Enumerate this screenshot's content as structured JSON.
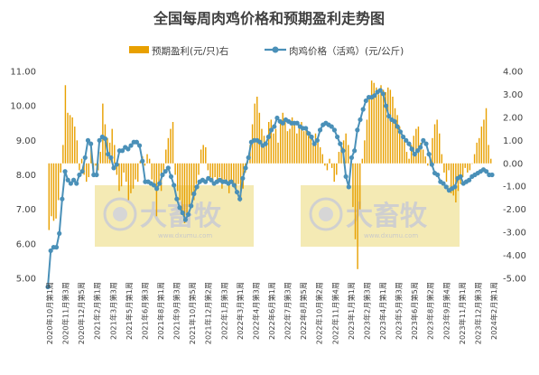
{
  "chart_data": {
    "type": "bar+line",
    "title": "全国每周肉鸡价格和预期盈利走势图",
    "x_tick_labels": [
      "2020年10月第1周",
      "2020年11月第3周",
      "2020年12月第5周",
      "2021年2月第1周",
      "2021年3月第3周",
      "2021年5月第1周",
      "2021年6月第3周",
      "2021年8月第1周",
      "2021年9月第3周",
      "2021年10月第5周",
      "2021年12月第2周",
      "2022年1月第3周",
      "2022年3月第1周",
      "2022年4月第3周",
      "2022年6月第1周",
      "2022年7月第3周",
      "2022年8月第5周",
      "2022年10月第2周",
      "2022年11月第4周",
      "2023年1月第1周",
      "2023年2月第3周",
      "2023年4月第1周",
      "2023年5月第3周",
      "2023年6月第5周",
      "2023年8月第2周",
      "2023年9月第4周",
      "2023年11月第1周",
      "2023年12月第3周",
      "2024年2月第1周"
    ],
    "left_axis": {
      "ylim": [
        5.0,
        11.0
      ],
      "ticks": [
        "5.00",
        "6.00",
        "7.00",
        "8.00",
        "9.00",
        "10.00",
        "11.00"
      ]
    },
    "right_axis": {
      "ylim": [
        -5.0,
        4.0
      ],
      "ticks": [
        "-5.00",
        "-4.00",
        "-3.00",
        "-2.00",
        "-1.00",
        "0.00",
        "1.00",
        "2.00",
        "3.00",
        "4.00"
      ]
    },
    "legend": {
      "position": "top-center"
    },
    "series": [
      {
        "name": "预期盈利(元/只)右",
        "type": "bar",
        "axis": "right",
        "color": "#E8A000",
        "values": [
          -2.9,
          -2.3,
          -2.5,
          -2.4,
          -1.6,
          -0.4,
          0.8,
          3.4,
          2.2,
          2.1,
          2.0,
          1.6,
          1.0,
          -0.3,
          0.2,
          -0.5,
          -0.8,
          -0.6,
          0.6,
          -0.3,
          -0.1,
          -0.3,
          0.5,
          2.6,
          1.7,
          1.1,
          0.9,
          1.5,
          0.8,
          -0.5,
          -1.2,
          -1.0,
          -0.4,
          -0.8,
          -1.6,
          -1.3,
          -1.1,
          -0.7,
          -0.8,
          0.1,
          0.3,
          -0.1,
          0.4,
          0.2,
          -0.7,
          -0.9,
          -2.3,
          -0.9,
          -1.2,
          -0.3,
          0.6,
          1.1,
          1.5,
          1.8,
          -0.5,
          -1.2,
          -1.6,
          -2.2,
          -2.6,
          -2.3,
          -1.9,
          -1.4,
          -1.6,
          -0.9,
          -0.5,
          0.6,
          0.8,
          0.7,
          -0.3,
          -0.6,
          -0.9,
          -0.6,
          -0.8,
          -0.6,
          -1.1,
          -0.7,
          -0.9,
          -1.3,
          -0.8,
          -1.0,
          -1.2,
          -0.9,
          -1.5,
          -1.1,
          -0.4,
          0.1,
          0.8,
          1.7,
          2.6,
          2.9,
          2.2,
          1.5,
          1.2,
          0.9,
          1.8,
          1.9,
          1.3,
          1.5,
          0.9,
          1.9,
          2.2,
          1.8,
          1.4,
          1.5,
          2.0,
          1.7,
          1.3,
          1.6,
          1.8,
          1.4,
          1.6,
          1.2,
          1.1,
          0.8,
          1.3,
          1.0,
          0.7,
          0.4,
          -0.1,
          -0.3,
          0.2,
          -0.2,
          -0.8,
          -0.5,
          0.5,
          0.7,
          1.0,
          1.3,
          0.8,
          -0.2,
          -1.9,
          -3.3,
          -4.6,
          -2.0,
          0.2,
          1.0,
          1.9,
          2.8,
          3.6,
          3.5,
          3.3,
          3.0,
          3.4,
          3.2,
          3.1,
          3.3,
          3.2,
          2.9,
          2.4,
          2.1,
          1.6,
          1.3,
          1.0,
          0.5,
          0.2,
          0.8,
          1.2,
          1.5,
          1.6,
          0.9,
          0.6,
          0.3,
          -0.1,
          0.3,
          1.1,
          1.7,
          1.9,
          1.3,
          0.4,
          -0.4,
          -0.8,
          -0.3,
          -1.3,
          -1.4,
          -1.7,
          -1.2,
          -0.9,
          -0.6,
          -0.2,
          -0.4,
          -0.3,
          0.0,
          0.4,
          0.9,
          1.1,
          1.6,
          1.9,
          2.4,
          0.8,
          0.2
        ]
      },
      {
        "name": "肉鸡价格（活鸡）(元/公斤)",
        "type": "line",
        "axis": "left",
        "color": "#4A90B8",
        "values": [
          4.75,
          5.8,
          5.9,
          5.9,
          6.3,
          7.3,
          8.1,
          7.85,
          7.75,
          7.85,
          7.75,
          8.0,
          8.1,
          8.5,
          9.0,
          8.9,
          8.0,
          8.0,
          9.0,
          9.1,
          9.05,
          8.6,
          8.5,
          8.2,
          8.3,
          8.7,
          8.7,
          8.8,
          8.75,
          8.85,
          8.95,
          8.95,
          8.85,
          8.4,
          7.8,
          7.8,
          7.75,
          7.7,
          7.6,
          7.75,
          8.0,
          8.1,
          8.2,
          7.95,
          7.7,
          7.3,
          7.05,
          6.9,
          6.7,
          6.85,
          7.1,
          7.45,
          7.65,
          7.8,
          7.85,
          7.8,
          7.9,
          7.85,
          7.75,
          7.8,
          7.85,
          7.8,
          7.8,
          7.75,
          7.8,
          7.7,
          7.5,
          7.3,
          7.9,
          8.2,
          8.5,
          8.95,
          9.0,
          9.0,
          8.95,
          8.85,
          8.9,
          9.1,
          9.3,
          9.4,
          9.65,
          9.55,
          9.5,
          9.6,
          9.55,
          9.5,
          9.5,
          9.5,
          9.4,
          9.35,
          9.35,
          9.2,
          9.1,
          8.9,
          9.0,
          9.3,
          9.45,
          9.5,
          9.45,
          9.4,
          9.3,
          9.1,
          8.9,
          8.7,
          7.95,
          7.65,
          8.5,
          8.7,
          9.3,
          9.6,
          9.9,
          10.15,
          10.25,
          10.25,
          10.3,
          10.4,
          10.45,
          10.35,
          10.0,
          9.7,
          9.6,
          9.55,
          9.4,
          9.25,
          9.1,
          9.0,
          8.9,
          8.75,
          8.6,
          8.7,
          8.8,
          9.0,
          8.9,
          8.6,
          8.3,
          8.05,
          8.0,
          7.8,
          7.75,
          7.65,
          7.55,
          7.6,
          7.65,
          7.9,
          7.95,
          7.75,
          7.8,
          7.85,
          7.95,
          8.0,
          8.05,
          8.1,
          8.15,
          8.1,
          8.0,
          8.0
        ],
        "note": ""
      }
    ]
  },
  "watermark": {
    "brand": "大畜牧",
    "url": "www.dxumu.com"
  },
  "colors": {
    "bar": "#E8A000",
    "line": "#4A90B8",
    "marker_fill": "#4A90B8",
    "watermark_band": "#F4EAB4",
    "axis_text": "#404040"
  }
}
